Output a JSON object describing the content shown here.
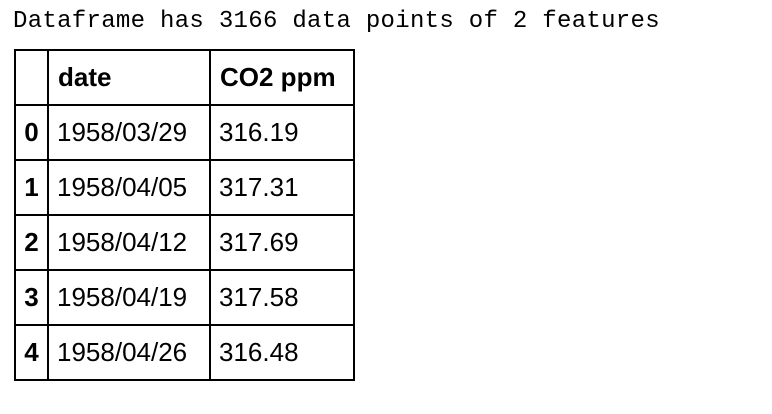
{
  "output": {
    "summary_text": "Dataframe has 3166 data points of 2 features"
  },
  "table": {
    "index_header": "",
    "columns": [
      "date",
      "CO2 ppm"
    ],
    "rows": [
      {
        "index": "0",
        "date": "1958/03/29",
        "co2": "316.19"
      },
      {
        "index": "1",
        "date": "1958/04/05",
        "co2": "317.31"
      },
      {
        "index": "2",
        "date": "1958/04/12",
        "co2": "317.69"
      },
      {
        "index": "3",
        "date": "1958/04/19",
        "co2": "317.58"
      },
      {
        "index": "4",
        "date": "1958/04/26",
        "co2": "316.48"
      }
    ]
  }
}
